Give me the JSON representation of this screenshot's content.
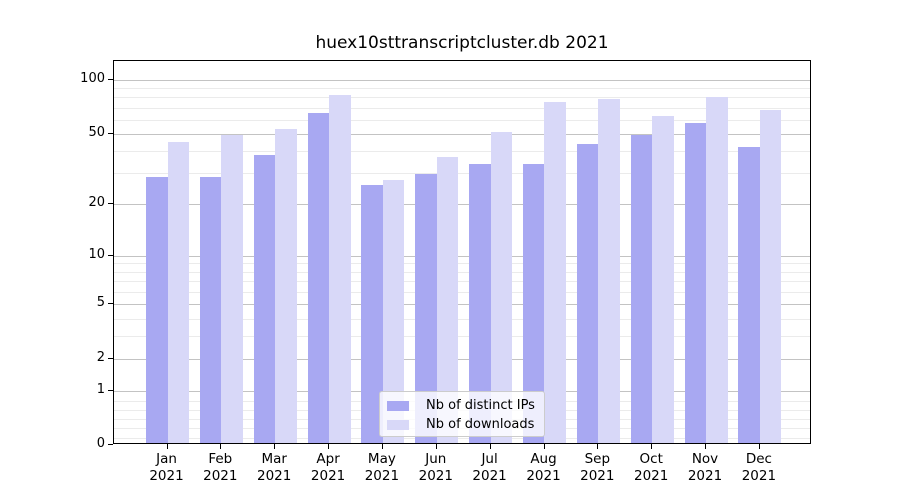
{
  "title": "huex10sttranscriptcluster.db 2021",
  "legend": {
    "items": [
      {
        "label": "Nb of distinct IPs",
        "color": "#a8a8f2"
      },
      {
        "label": "Nb of downloads",
        "color": "#d8d8f8"
      }
    ]
  },
  "x_axis": {
    "months": [
      "Jan",
      "Feb",
      "Mar",
      "Apr",
      "May",
      "Jun",
      "Jul",
      "Aug",
      "Sep",
      "Oct",
      "Nov",
      "Dec"
    ],
    "year": "2021"
  },
  "y_axis": {
    "tick_labels": [
      "0",
      "1",
      "2",
      "5",
      "10",
      "20",
      "50",
      "100"
    ]
  },
  "chart_data": {
    "type": "bar",
    "title": "huex10sttranscriptcluster.db 2021",
    "categories": [
      "Jan 2021",
      "Feb 2021",
      "Mar 2021",
      "Apr 2021",
      "May 2021",
      "Jun 2021",
      "Jul 2021",
      "Aug 2021",
      "Sep 2021",
      "Oct 2021",
      "Nov 2021",
      "Dec 2021"
    ],
    "series": [
      {
        "name": "Nb of distinct IPs",
        "color": "#a8a8f2",
        "values": [
          28,
          28,
          37,
          64,
          25,
          29,
          33,
          33,
          43,
          48,
          56,
          41
        ]
      },
      {
        "name": "Nb of downloads",
        "color": "#d8d8f8",
        "values": [
          44,
          48,
          52,
          80,
          27,
          36,
          50,
          73,
          76,
          61,
          78,
          66
        ]
      }
    ],
    "xlabel": "",
    "ylabel": "",
    "yscale": "log10(1+y)",
    "ylim": [
      0,
      122
    ],
    "yticks": [
      0,
      1,
      2,
      5,
      10,
      20,
      50,
      100
    ],
    "yticks_minor": [
      0.12,
      0.26,
      0.41,
      0.58,
      0.78,
      3,
      4,
      6,
      7,
      8,
      9,
      30,
      40,
      60,
      70,
      80,
      90
    ],
    "grid": "horizontal",
    "legend_position": "lower center"
  }
}
